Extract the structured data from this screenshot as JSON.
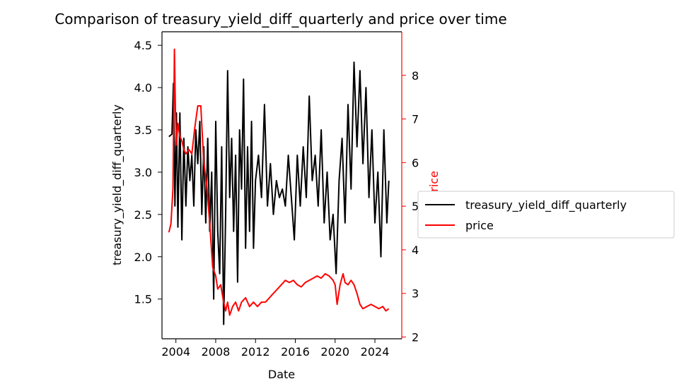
{
  "chart_data": {
    "type": "line",
    "title": "Comparison of treasury_yield_diff_quarterly and price over time",
    "xlabel": "Date",
    "ylabel_left": "treasury_yield_diff_quarterly",
    "ylabel_right": "price",
    "xlim": [
      2002.6,
      2026.7
    ],
    "ylim_left": [
      1.03,
      4.66
    ],
    "ylim_right": [
      1.96,
      9.0
    ],
    "x_ticks": [
      2004,
      2008,
      2012,
      2016,
      2020,
      2024
    ],
    "x_tick_labels": [
      "2004",
      "2008",
      "2012",
      "2016",
      "2020",
      "2024"
    ],
    "y_left_ticks": [
      1.5,
      2.0,
      2.5,
      3.0,
      3.5,
      4.0,
      4.5
    ],
    "y_left_tick_labels": [
      "1.5",
      "2.0",
      "2.5",
      "3.0",
      "3.5",
      "4.0",
      "4.5"
    ],
    "y_right_ticks": [
      2,
      3,
      4,
      5,
      6,
      7,
      8
    ],
    "y_right_tick_labels": [
      "2",
      "3",
      "4",
      "5",
      "6",
      "7",
      "8"
    ],
    "legend_position": "right, outside plot",
    "grid": false,
    "series": [
      {
        "name": "treasury_yield_diff_quarterly",
        "axis": "left",
        "color": "#000000",
        "x": [
          2003.3,
          2003.6,
          2003.75,
          2003.9,
          2004.05,
          2004.2,
          2004.4,
          2004.6,
          2004.8,
          2005.0,
          2005.2,
          2005.4,
          2005.6,
          2005.8,
          2006.0,
          2006.2,
          2006.4,
          2006.6,
          2006.8,
          2007.0,
          2007.2,
          2007.4,
          2007.6,
          2007.8,
          2008.0,
          2008.2,
          2008.4,
          2008.6,
          2008.8,
          2009.0,
          2009.2,
          2009.4,
          2009.6,
          2009.8,
          2010.0,
          2010.2,
          2010.4,
          2010.6,
          2010.8,
          2011.0,
          2011.2,
          2011.4,
          2011.6,
          2011.8,
          2012.0,
          2012.3,
          2012.6,
          2012.9,
          2013.2,
          2013.5,
          2013.8,
          2014.1,
          2014.4,
          2014.7,
          2015.0,
          2015.3,
          2015.6,
          2015.9,
          2016.2,
          2016.5,
          2016.8,
          2017.1,
          2017.4,
          2017.7,
          2018.0,
          2018.3,
          2018.6,
          2018.9,
          2019.2,
          2019.5,
          2019.8,
          2020.1,
          2020.4,
          2020.7,
          2021.0,
          2021.3,
          2021.6,
          2021.9,
          2022.2,
          2022.5,
          2022.8,
          2023.1,
          2023.4,
          2023.7,
          2024.0,
          2024.3,
          2024.6,
          2024.9,
          2025.2,
          2025.4
        ],
        "values": [
          3.42,
          3.45,
          4.05,
          2.6,
          3.7,
          2.35,
          3.7,
          2.2,
          3.4,
          2.6,
          3.3,
          2.9,
          3.2,
          2.6,
          3.5,
          3.1,
          3.6,
          2.5,
          3.3,
          2.4,
          3.4,
          2.3,
          3.0,
          1.5,
          3.6,
          2.3,
          1.8,
          3.3,
          1.2,
          2.5,
          4.2,
          2.7,
          3.4,
          2.3,
          3.2,
          1.7,
          3.5,
          2.8,
          4.1,
          2.1,
          3.3,
          2.3,
          3.6,
          2.1,
          2.9,
          3.2,
          2.7,
          3.8,
          2.6,
          3.1,
          2.5,
          2.9,
          2.7,
          2.8,
          2.6,
          3.2,
          2.7,
          2.2,
          3.2,
          2.6,
          3.3,
          2.7,
          3.9,
          2.9,
          3.2,
          2.6,
          3.5,
          2.4,
          3.0,
          2.2,
          2.5,
          1.8,
          2.9,
          3.4,
          2.4,
          3.8,
          2.8,
          4.3,
          3.3,
          4.2,
          3.1,
          4.0,
          2.7,
          3.5,
          2.4,
          3.0,
          2.0,
          3.5,
          2.4,
          2.9
        ]
      },
      {
        "name": "price",
        "axis": "right",
        "color": "#ff0000",
        "x": [
          2003.3,
          2003.5,
          2003.7,
          2003.85,
          2003.95,
          2004.05,
          2004.2,
          2004.4,
          2004.6,
          2004.8,
          2005.0,
          2005.3,
          2005.6,
          2005.9,
          2006.2,
          2006.5,
          2006.8,
          2007.1,
          2007.4,
          2007.7,
          2008.0,
          2008.2,
          2008.5,
          2008.8,
          2009.0,
          2009.2,
          2009.4,
          2009.7,
          2010.0,
          2010.3,
          2010.6,
          2011.0,
          2011.4,
          2011.8,
          2012.2,
          2012.6,
          2013.0,
          2013.4,
          2013.8,
          2014.2,
          2014.6,
          2015.0,
          2015.4,
          2015.8,
          2016.2,
          2016.6,
          2017.0,
          2017.4,
          2017.8,
          2018.2,
          2018.6,
          2019.0,
          2019.4,
          2019.8,
          2020.0,
          2020.2,
          2020.5,
          2020.8,
          2021.0,
          2021.3,
          2021.6,
          2021.9,
          2022.2,
          2022.5,
          2022.8,
          2023.2,
          2023.6,
          2024.0,
          2024.4,
          2024.8,
          2025.1,
          2025.4
        ],
        "values": [
          4.4,
          4.6,
          5.4,
          8.6,
          7.2,
          6.4,
          6.9,
          6.6,
          6.5,
          6.3,
          6.2,
          6.3,
          6.2,
          6.8,
          7.3,
          7.3,
          6.0,
          5.5,
          4.6,
          3.6,
          3.4,
          3.1,
          3.2,
          2.8,
          2.6,
          2.8,
          2.5,
          2.7,
          2.8,
          2.6,
          2.8,
          2.9,
          2.7,
          2.8,
          2.7,
          2.8,
          2.8,
          2.9,
          3.0,
          3.1,
          3.2,
          3.3,
          3.25,
          3.3,
          3.2,
          3.15,
          3.25,
          3.3,
          3.35,
          3.4,
          3.35,
          3.45,
          3.4,
          3.3,
          3.2,
          2.75,
          3.2,
          3.45,
          3.25,
          3.2,
          3.3,
          3.2,
          3.0,
          2.75,
          2.65,
          2.7,
          2.75,
          2.7,
          2.65,
          2.7,
          2.6,
          2.65
        ]
      }
    ]
  }
}
